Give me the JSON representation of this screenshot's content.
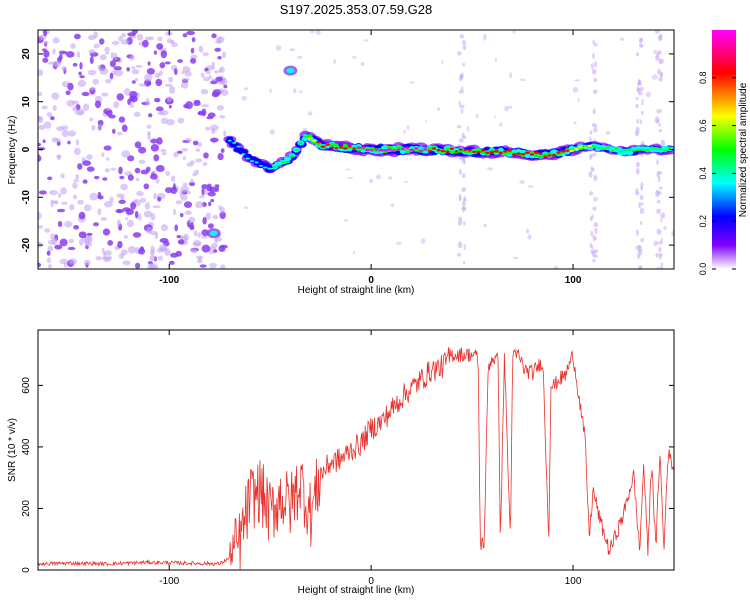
{
  "figure_title": "S197.2025.353.07.59.G28",
  "colors": {
    "axis": "#000000",
    "snr_line": "#e8312c",
    "dot_purple": "#8a3cf0",
    "dot_purple_light": "#c7a6f5"
  },
  "chart_data": [
    {
      "type": "heatmap",
      "title": "",
      "xlabel": "Height of straight line (km)",
      "ylabel": "Frequency (Hz)",
      "xlim": [
        -165,
        150
      ],
      "ylim": [
        -25,
        25
      ],
      "xticks": [
        -100,
        0,
        100
      ],
      "yticks": [
        -20,
        -10,
        0,
        10,
        20
      ],
      "colorbar": {
        "label": "Normalized spectral amplitude",
        "range": [
          0,
          1
        ],
        "ticks": [
          0.0,
          0.2,
          0.4,
          0.6,
          0.8
        ],
        "stops": [
          "#ff00ff",
          "#ff0000",
          "#ffff00",
          "#00ff00",
          "#00ffff",
          "#0000ff",
          "#8000ff",
          "#ffffff"
        ]
      },
      "ridge": {
        "x": [
          -70,
          -60,
          -50,
          -40,
          -32,
          -25,
          -15,
          0,
          15,
          30,
          45,
          55,
          65,
          75,
          85,
          95,
          105,
          115,
          125,
          135,
          145,
          150
        ],
        "freq": [
          2,
          -2,
          -4,
          -2,
          3,
          1,
          0.5,
          0,
          0,
          0,
          -0.3,
          -0.5,
          -0.5,
          -0.8,
          -1.2,
          -0.5,
          0.5,
          0.5,
          -0.5,
          0,
          0,
          0
        ],
        "amplitude": [
          0.25,
          0.3,
          0.35,
          0.4,
          0.5,
          0.7,
          0.75,
          0.9,
          0.95,
          0.8,
          0.75,
          0.7,
          0.75,
          0.7,
          0.8,
          0.7,
          0.55,
          0.4,
          0.45,
          0.5,
          0.5,
          0.45
        ]
      },
      "noise_region_x": [
        -165,
        -75
      ],
      "blobs": [
        {
          "x": -40,
          "freq": 16.5,
          "amplitude": 0.25
        },
        {
          "x": -78,
          "freq": -17.5,
          "amplitude": 0.25
        }
      ],
      "vertical_streaks_x": [
        45,
        110,
        133,
        143
      ]
    },
    {
      "type": "line",
      "title": "",
      "xlabel": "Height of straight line (km)",
      "ylabel": "SNR (10 * v/v)",
      "xlim": [
        -165,
        150
      ],
      "ylim": [
        0,
        780
      ],
      "xticks": [
        -100,
        0,
        100
      ],
      "yticks": [
        0,
        200,
        400,
        600
      ],
      "series": [
        {
          "name": "SNR",
          "x": [
            -165,
            -150,
            -130,
            -110,
            -90,
            -75,
            -70,
            -65,
            -60,
            -55,
            -50,
            -45,
            -40,
            -35,
            -30,
            -25,
            -20,
            -15,
            -10,
            -5,
            0,
            5,
            10,
            15,
            20,
            25,
            30,
            35,
            40,
            45,
            50,
            53,
            54,
            56,
            58,
            60,
            63,
            64,
            66,
            69,
            70,
            73,
            76,
            80,
            85,
            88,
            89,
            91,
            93,
            96,
            100,
            103,
            106,
            108,
            110,
            113,
            118,
            125,
            130,
            133,
            135,
            137,
            139,
            141,
            143,
            145,
            147,
            150
          ],
          "values": [
            20,
            22,
            20,
            25,
            22,
            20,
            40,
            90,
            230,
            260,
            180,
            240,
            210,
            290,
            180,
            310,
            350,
            360,
            390,
            410,
            460,
            480,
            520,
            560,
            590,
            620,
            650,
            660,
            700,
            700,
            700,
            690,
            85,
            90,
            660,
            690,
            680,
            80,
            700,
            90,
            690,
            700,
            650,
            640,
            680,
            100,
            600,
            600,
            620,
            630,
            700,
            560,
            420,
            110,
            260,
            170,
            60,
            180,
            310,
            60,
            350,
            60,
            360,
            60,
            390,
            60,
            380,
            330
          ]
        }
      ]
    }
  ]
}
